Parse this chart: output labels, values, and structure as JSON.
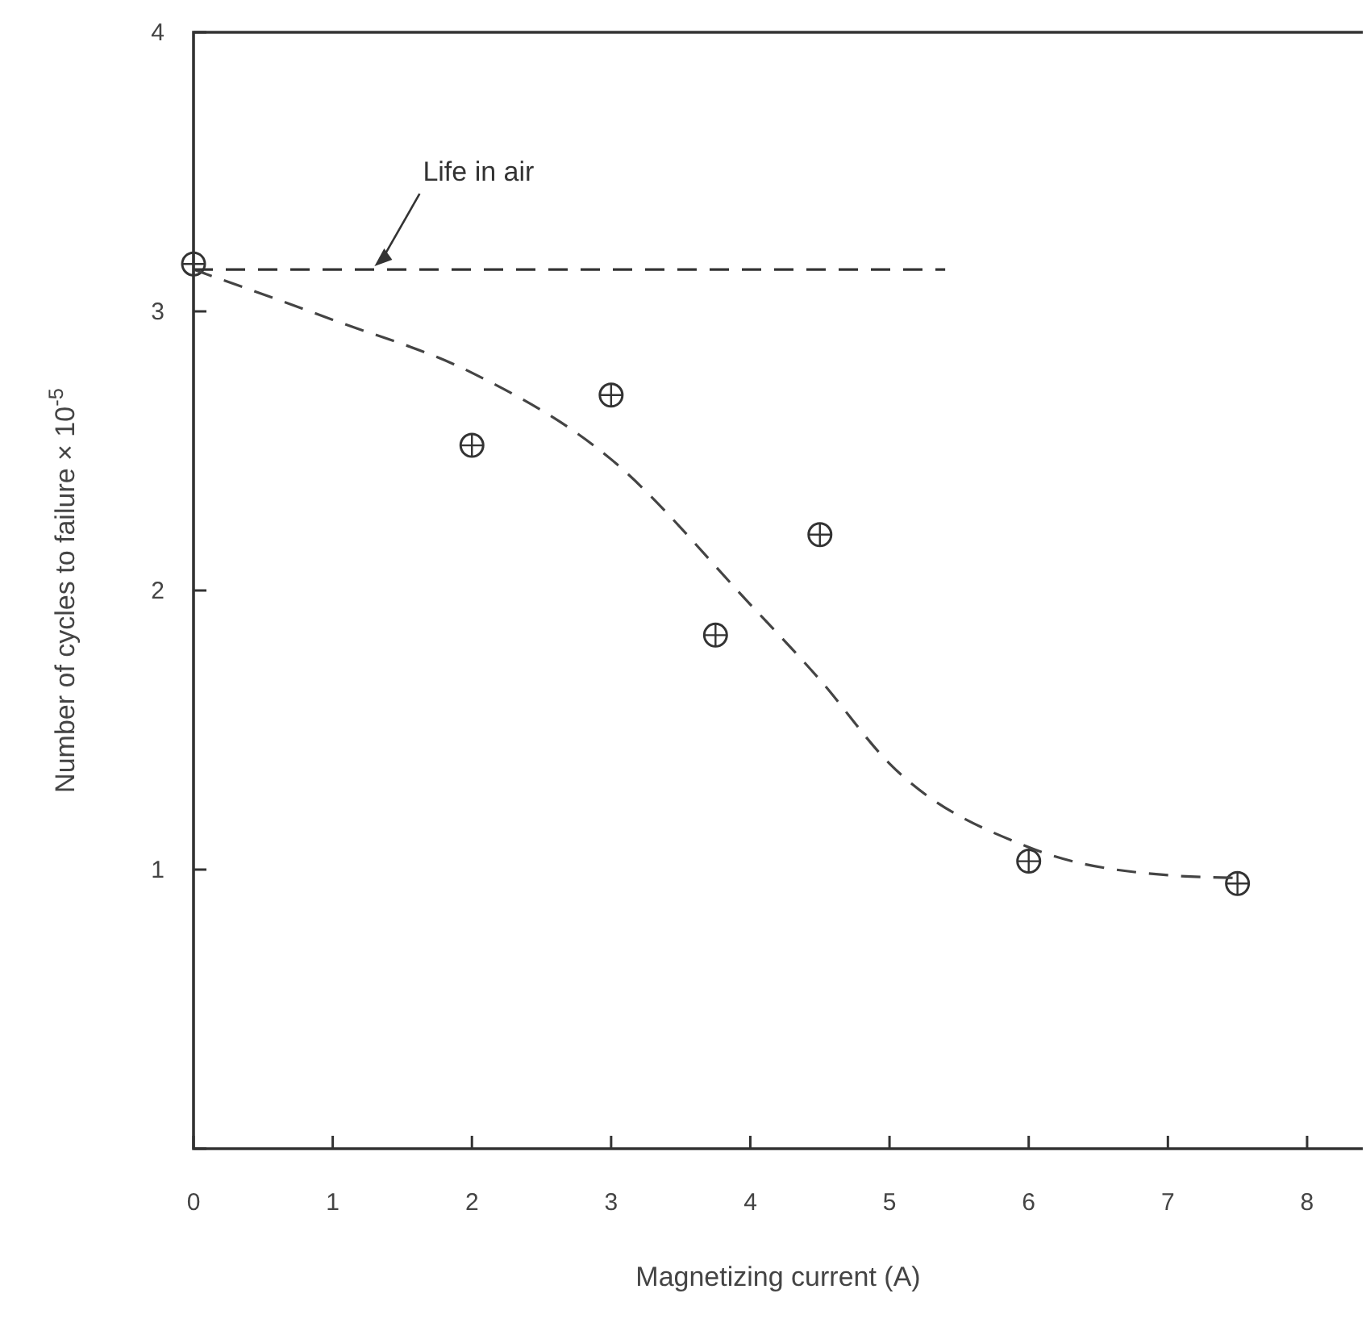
{
  "chart_data": {
    "type": "scatter",
    "xlabel": "Magnetizing current (A)",
    "ylabel": "Number of cycles to failure × 10$^{-5}$",
    "xlim": [
      0,
      8.4
    ],
    "ylim": [
      0,
      4
    ],
    "xticks": [
      0,
      1,
      2,
      3,
      4,
      5,
      6,
      7,
      8
    ],
    "yticks": [
      {
        "value": 0,
        "label": null
      },
      1,
      2,
      3,
      4
    ],
    "grid": false,
    "annotations": [
      {
        "text": "Life in air",
        "x": 1.3,
        "y": 3.15
      }
    ],
    "series": [
      {
        "color": "#333333",
        "marker": "circle",
        "x": [
          0,
          2,
          3,
          3.75,
          4.5,
          6,
          7.5
        ],
        "values": [
          3.17,
          2.52,
          2.7,
          1.84,
          2.2,
          1.03,
          0.95
        ]
      },
      {
        "type": "line",
        "color": "#444444",
        "line_style": "dashed",
        "marker": "none",
        "x": [
          0,
          1,
          2,
          3,
          4,
          4.5,
          5,
          6,
          7,
          7.5
        ],
        "values": [
          3.15,
          2.97,
          2.78,
          2.47,
          1.95,
          1.68,
          1.38,
          1.08,
          0.98,
          0.97
        ]
      },
      {
        "type": "line",
        "color": "#333333",
        "line_style": "dashed",
        "marker": "none",
        "x": [
          0,
          5.4
        ],
        "values": [
          3.15,
          3.15
        ]
      }
    ]
  }
}
